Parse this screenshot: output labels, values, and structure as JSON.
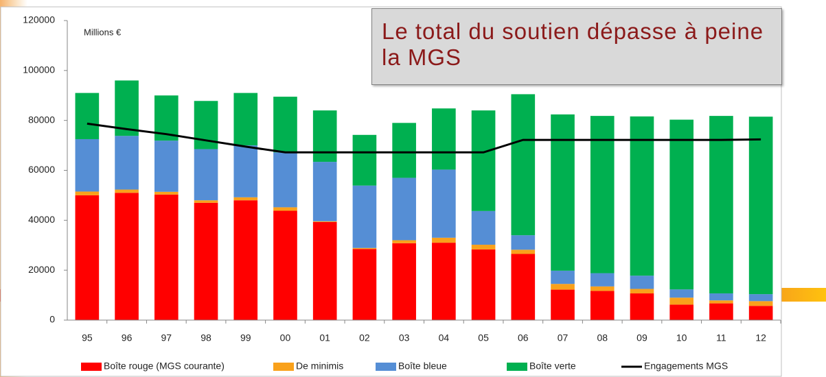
{
  "chart_data": {
    "type": "bar",
    "stacked": true,
    "y_unit": "Millions €",
    "annotation": "Le total du soutien dépasse à peine la MGS",
    "categories": [
      "95",
      "96",
      "97",
      "98",
      "99",
      "00",
      "01",
      "02",
      "03",
      "04",
      "05",
      "06",
      "07",
      "08",
      "09",
      "10",
      "11",
      "12"
    ],
    "ylim": [
      0,
      120000
    ],
    "yticks": [
      0,
      20000,
      40000,
      60000,
      80000,
      100000,
      120000
    ],
    "grid": false,
    "legend": "bottom",
    "series": [
      {
        "name": "Boîte rouge (MGS courante)",
        "color": "#ff0000",
        "values": [
          50000,
          51000,
          50300,
          47000,
          48000,
          43800,
          39300,
          28500,
          30800,
          31000,
          28300,
          26500,
          12200,
          11700,
          10700,
          6200,
          6700,
          5700
        ]
      },
      {
        "name": "De minimis",
        "color": "#f9a11b",
        "values": [
          1500,
          1300,
          1100,
          1000,
          1200,
          1400,
          300,
          400,
          1200,
          2000,
          1900,
          1700,
          2300,
          1800,
          1800,
          2800,
          1200,
          1900
        ]
      },
      {
        "name": "Boîte bleue",
        "color": "#558ed5",
        "values": [
          21000,
          21500,
          20500,
          20500,
          20800,
          22000,
          23800,
          25000,
          25000,
          27300,
          13500,
          5800,
          5300,
          5300,
          5300,
          3300,
          2800,
          2800
        ]
      },
      {
        "name": "Boîte verte",
        "color": "#00b050",
        "values": [
          18500,
          22200,
          18100,
          19300,
          21000,
          22300,
          20600,
          20300,
          22000,
          24500,
          40300,
          56500,
          62600,
          63000,
          63800,
          68000,
          71100,
          71100
        ]
      },
      {
        "name": "Engagements MGS",
        "color": "#000000",
        "type": "line",
        "values": [
          78700,
          76500,
          74500,
          72000,
          69500,
          67200,
          67200,
          67200,
          67200,
          67200,
          67200,
          72200,
          72200,
          72200,
          72200,
          72200,
          72200,
          72400
        ]
      }
    ]
  }
}
